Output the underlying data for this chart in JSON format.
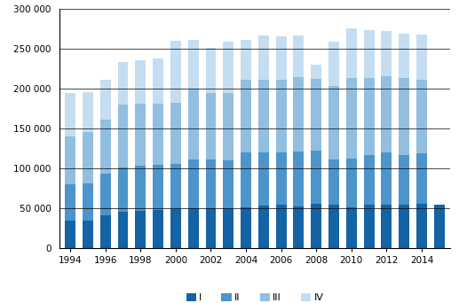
{
  "years": [
    1994,
    1995,
    1996,
    1997,
    1998,
    1999,
    2000,
    2001,
    2002,
    2003,
    2004,
    2005,
    2006,
    2007,
    2008,
    2009,
    2010,
    2011,
    2012,
    2013,
    2014,
    2015
  ],
  "Q1": [
    35000,
    35000,
    42000,
    46000,
    47000,
    48000,
    49000,
    50000,
    50000,
    51000,
    52000,
    54000,
    55000,
    53000,
    56000,
    55000,
    52000,
    55000,
    55000,
    55000,
    56000,
    55000
  ],
  "Q2": [
    45000,
    46000,
    52000,
    56000,
    57000,
    57000,
    57000,
    61000,
    61000,
    59000,
    68000,
    66000,
    65000,
    69000,
    67000,
    56000,
    61000,
    62000,
    65000,
    62000,
    63000,
    0
  ],
  "Q3": [
    60000,
    65000,
    68000,
    78000,
    77000,
    76000,
    77000,
    89000,
    84000,
    85000,
    91000,
    92000,
    91000,
    93000,
    90000,
    93000,
    101000,
    97000,
    96000,
    97000,
    93000,
    0
  ],
  "Q4": [
    55000,
    50000,
    50000,
    54000,
    55000,
    57000,
    77000,
    61000,
    56000,
    64000,
    50000,
    55000,
    55000,
    52000,
    17000,
    55000,
    62000,
    60000,
    57000,
    55000,
    56000,
    0
  ],
  "colors": [
    "#1463a5",
    "#4d94cb",
    "#92bfe0",
    "#c5ddf0"
  ],
  "legend_labels": [
    "I",
    "II",
    "III",
    "IV"
  ],
  "ylim": [
    0,
    300000
  ],
  "yticks": [
    0,
    50000,
    100000,
    150000,
    200000,
    250000,
    300000
  ],
  "background_color": "#ffffff",
  "grid_color": "#000000"
}
